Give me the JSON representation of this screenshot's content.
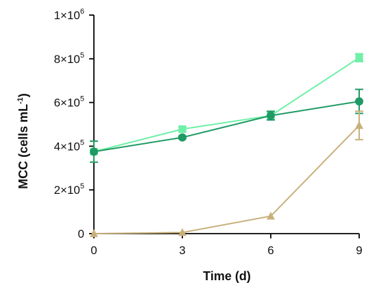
{
  "chart_data": {
    "type": "line",
    "xlabel": "Time (d)",
    "ylabel": {
      "main": "MCC (cells mL",
      "exponent": "-1",
      "close": ")"
    },
    "x": [
      0,
      3,
      6,
      9
    ],
    "xlim": [
      0,
      9
    ],
    "ylim": [
      0,
      1000000
    ],
    "x_ticks": [
      0,
      3,
      6,
      9
    ],
    "y_ticks": [
      {
        "value": 0,
        "mantissa": "0",
        "exponent": ""
      },
      {
        "value": 200000,
        "mantissa": "2×10",
        "exponent": "5"
      },
      {
        "value": 400000,
        "mantissa": "4×10",
        "exponent": "5"
      },
      {
        "value": 600000,
        "mantissa": "6×10",
        "exponent": "5"
      },
      {
        "value": 800000,
        "mantissa": "8×10",
        "exponent": "5"
      },
      {
        "value": 1000000,
        "mantissa": "1×10",
        "exponent": "6"
      }
    ],
    "grid": false,
    "series": [
      {
        "marker": "square",
        "color": "#6ef0a6",
        "values": [
          375000,
          478000,
          540000,
          805000
        ],
        "errors": [
          10000,
          10000,
          15000,
          18000
        ]
      },
      {
        "marker": "circle",
        "color": "#1f9a64",
        "values": [
          375000,
          440000,
          540000,
          605000
        ],
        "errors": [
          48000,
          6000,
          20000,
          55000
        ]
      },
      {
        "marker": "triangle",
        "color": "#c9b07a",
        "values": [
          0,
          5000,
          80000,
          495000
        ],
        "errors": [
          0,
          0,
          0,
          65000
        ]
      }
    ]
  }
}
